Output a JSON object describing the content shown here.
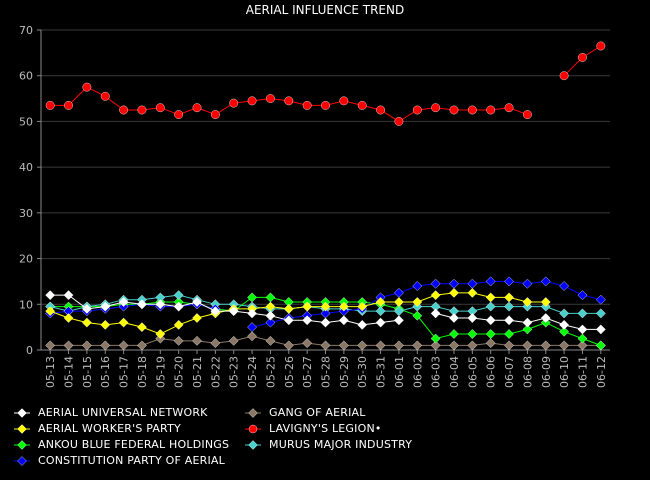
{
  "chart_data": {
    "type": "line",
    "title": "AERIAL INFLUENCE TREND",
    "xlabel": "",
    "ylabel": "",
    "ylim": [
      0,
      70
    ],
    "yticks": [
      0,
      10,
      20,
      30,
      40,
      50,
      60,
      70
    ],
    "grid": true,
    "legend_position": "bottom",
    "x": [
      "05-13",
      "05-14",
      "05-15",
      "05-16",
      "05-17",
      "05-18",
      "05-19",
      "05-20",
      "05-21",
      "05-22",
      "05-23",
      "05-24",
      "05-25",
      "05-26",
      "05-27",
      "05-28",
      "05-29",
      "05-30",
      "05-31",
      "06-01",
      "06-02",
      "06-03",
      "06-04",
      "06-05",
      "06-06",
      "06-07",
      "06-08",
      "06-09",
      "06-10",
      "06-11",
      "06-12"
    ],
    "series": [
      {
        "name": "AERIAL UNIVERSAL NETWORK",
        "color": "#ffffff",
        "marker": "diamond",
        "values": [
          12.0,
          12.0,
          9.0,
          9.5,
          10.5,
          10.0,
          10.0,
          9.5,
          10.5,
          8.5,
          8.5,
          8.0,
          7.5,
          6.5,
          6.5,
          6.0,
          6.5,
          5.5,
          6.0,
          6.5,
          null,
          8.0,
          7.0,
          7.0,
          6.5,
          6.5,
          6.0,
          7.0,
          5.5,
          4.5,
          4.5
        ]
      },
      {
        "name": "AERIAL WORKER'S PARTY",
        "color": "#ffff00",
        "marker": "diamond",
        "values": [
          8.5,
          7.0,
          6.0,
          5.5,
          6.0,
          5.0,
          3.5,
          5.5,
          7.0,
          8.0,
          9.0,
          9.0,
          9.5,
          9.0,
          9.5,
          9.5,
          9.5,
          9.5,
          10.5,
          10.5,
          10.5,
          12.0,
          12.5,
          12.5,
          11.5,
          11.5,
          10.5,
          10.5,
          null,
          null,
          null
        ]
      },
      {
        "name": "ANKOU BLUE FEDERAL HOLDINGS",
        "color": "#00ff00",
        "marker": "diamond",
        "values": [
          9.5,
          9.5,
          9.5,
          9.5,
          10.0,
          10.0,
          10.5,
          10.5,
          10.0,
          9.0,
          8.5,
          11.5,
          11.5,
          10.5,
          10.5,
          10.5,
          10.5,
          10.5,
          10.0,
          9.0,
          7.5,
          2.5,
          3.5,
          3.5,
          3.5,
          3.5,
          4.5,
          6.0,
          4.0,
          2.5,
          1.0
        ]
      },
      {
        "name": "CONSTITUTION PARTY OF AERIAL",
        "color": "#0000ff",
        "marker": "diamond",
        "values": [
          8.0,
          8.5,
          8.5,
          9.0,
          9.5,
          10.0,
          9.5,
          9.5,
          10.0,
          9.0,
          null,
          5.0,
          6.0,
          7.0,
          7.5,
          8.0,
          8.5,
          9.0,
          11.5,
          12.5,
          14.0,
          14.5,
          14.5,
          14.5,
          15.0,
          15.0,
          14.5,
          15.0,
          14.0,
          12.0,
          11.0
        ]
      },
      {
        "name": "GANG OF AERIAL",
        "color": "#8b7765",
        "marker": "diamond",
        "values": [
          1.0,
          1.0,
          1.0,
          1.0,
          1.0,
          1.0,
          2.5,
          2.0,
          2.0,
          1.5,
          2.0,
          3.0,
          2.0,
          1.0,
          1.5,
          1.0,
          1.0,
          1.0,
          1.0,
          1.0,
          1.0,
          1.0,
          1.0,
          1.0,
          1.5,
          1.0,
          1.0,
          1.0,
          1.0,
          1.0,
          1.0
        ]
      },
      {
        "name": "LAVIGNY'S LEGION•",
        "color": "#ff0000",
        "marker": "circle",
        "values": [
          53.5,
          53.5,
          57.5,
          55.5,
          52.5,
          52.5,
          53.0,
          51.5,
          53.0,
          51.5,
          54.0,
          54.5,
          55.0,
          54.5,
          53.5,
          53.5,
          54.5,
          53.5,
          52.5,
          50.0,
          52.5,
          53.0,
          52.5,
          52.5,
          52.5,
          53.0,
          51.5,
          null,
          60.0,
          64.0,
          66.5
        ]
      },
      {
        "name": "MURUS MAJOR INDUSTRY",
        "color": "#48d1cc",
        "marker": "diamond",
        "values": [
          9.5,
          8.5,
          9.5,
          10.0,
          11.0,
          11.0,
          11.5,
          12.0,
          11.0,
          10.0,
          10.0,
          9.5,
          9.0,
          9.0,
          9.5,
          9.0,
          9.0,
          8.5,
          8.5,
          8.5,
          9.5,
          9.5,
          8.5,
          8.5,
          9.5,
          9.5,
          9.5,
          9.5,
          8.0,
          8.0,
          8.0
        ]
      }
    ]
  }
}
